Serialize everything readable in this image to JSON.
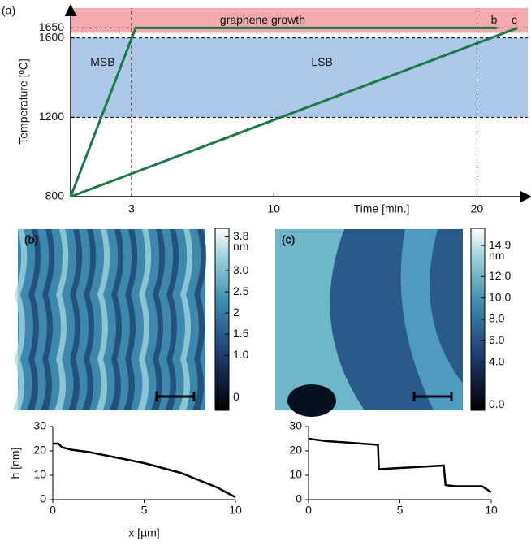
{
  "chart_data": [
    {
      "type": "line",
      "panel_label": "(a)",
      "x_label": "Time [min.]",
      "y_label": "Temperature [ºC]",
      "xlim": [
        0,
        22.5
      ],
      "xticks": [
        3,
        10,
        20
      ],
      "ylim": [
        800,
        1750
      ],
      "yticks": [
        800,
        1200,
        1600,
        1650
      ],
      "bands": [
        {
          "from": 1625,
          "to": 1750,
          "color": "#f5a9ad",
          "labels": [
            "graphene growth"
          ],
          "label_color": "#b03040"
        },
        {
          "from": 1200,
          "to": 1600,
          "color": "#adc8e8",
          "labels": [
            "MSB",
            "LSB"
          ],
          "label_color": "#2c3f9a"
        }
      ],
      "hlines": [
        1200,
        1600,
        1650
      ],
      "vlines": [
        3,
        20
      ],
      "series": [
        {
          "name": "b",
          "color": "#1a7a45",
          "x": [
            0,
            3.2,
            21
          ],
          "values": [
            800,
            1650,
            1650
          ]
        },
        {
          "name": "c",
          "color": "#1a7a45",
          "x": [
            0,
            22
          ],
          "values": [
            800,
            1650
          ]
        }
      ]
    },
    {
      "type": "afm",
      "panel_label": "(b)",
      "unit": "nm",
      "ylim": [
        -0.3,
        4.0
      ],
      "yticks": [
        0.0,
        {
          "value": 1.0,
          "label": "1.0"
        },
        1.5,
        2.0,
        2.5,
        {
          "value": 3.0,
          "label": "3.0"
        },
        3.8
      ],
      "style": "terraces"
    },
    {
      "type": "afm",
      "panel_label": "(c)",
      "unit": "nm",
      "ylim": [
        -0.5,
        16.5
      ],
      "yticks": [
        {
          "value": 0,
          "label": "0.0"
        },
        {
          "value": 4,
          "label": "4.0"
        },
        {
          "value": 6,
          "label": "6.0"
        },
        {
          "value": 8,
          "label": "8.0"
        },
        {
          "value": 10,
          "label": "10.0"
        },
        {
          "value": 12,
          "label": "12.0"
        },
        14.9
      ],
      "style": "steps"
    },
    {
      "type": "profile",
      "x_label": "x [µm]",
      "y_label": "h [nm]",
      "xlim": [
        0,
        10
      ],
      "xticks": [
        0,
        5,
        10
      ],
      "ylim": [
        0,
        30
      ],
      "yticks": [
        0,
        10,
        20,
        30
      ],
      "series": [
        {
          "color": "#000",
          "x": [
            0,
            0.3,
            0.5,
            1,
            2,
            3,
            4,
            5,
            6,
            7,
            8,
            9,
            9.5,
            10
          ],
          "values": [
            23,
            23,
            21.5,
            20.5,
            19.5,
            18,
            16.5,
            15,
            13,
            11,
            8,
            5,
            3,
            1
          ]
        }
      ]
    },
    {
      "type": "profile",
      "xlim": [
        0,
        10
      ],
      "xticks": [
        0,
        5,
        10
      ],
      "ylim": [
        0,
        30
      ],
      "yticks": [
        0,
        10,
        20,
        30
      ],
      "series": [
        {
          "color": "#000",
          "x": [
            0,
            1,
            2,
            3.8,
            3.85,
            5,
            7.4,
            7.5,
            8,
            9.5,
            10
          ],
          "values": [
            25,
            24,
            23.5,
            22.5,
            12.5,
            13,
            14,
            6,
            5.5,
            5.5,
            3
          ]
        }
      ]
    }
  ]
}
